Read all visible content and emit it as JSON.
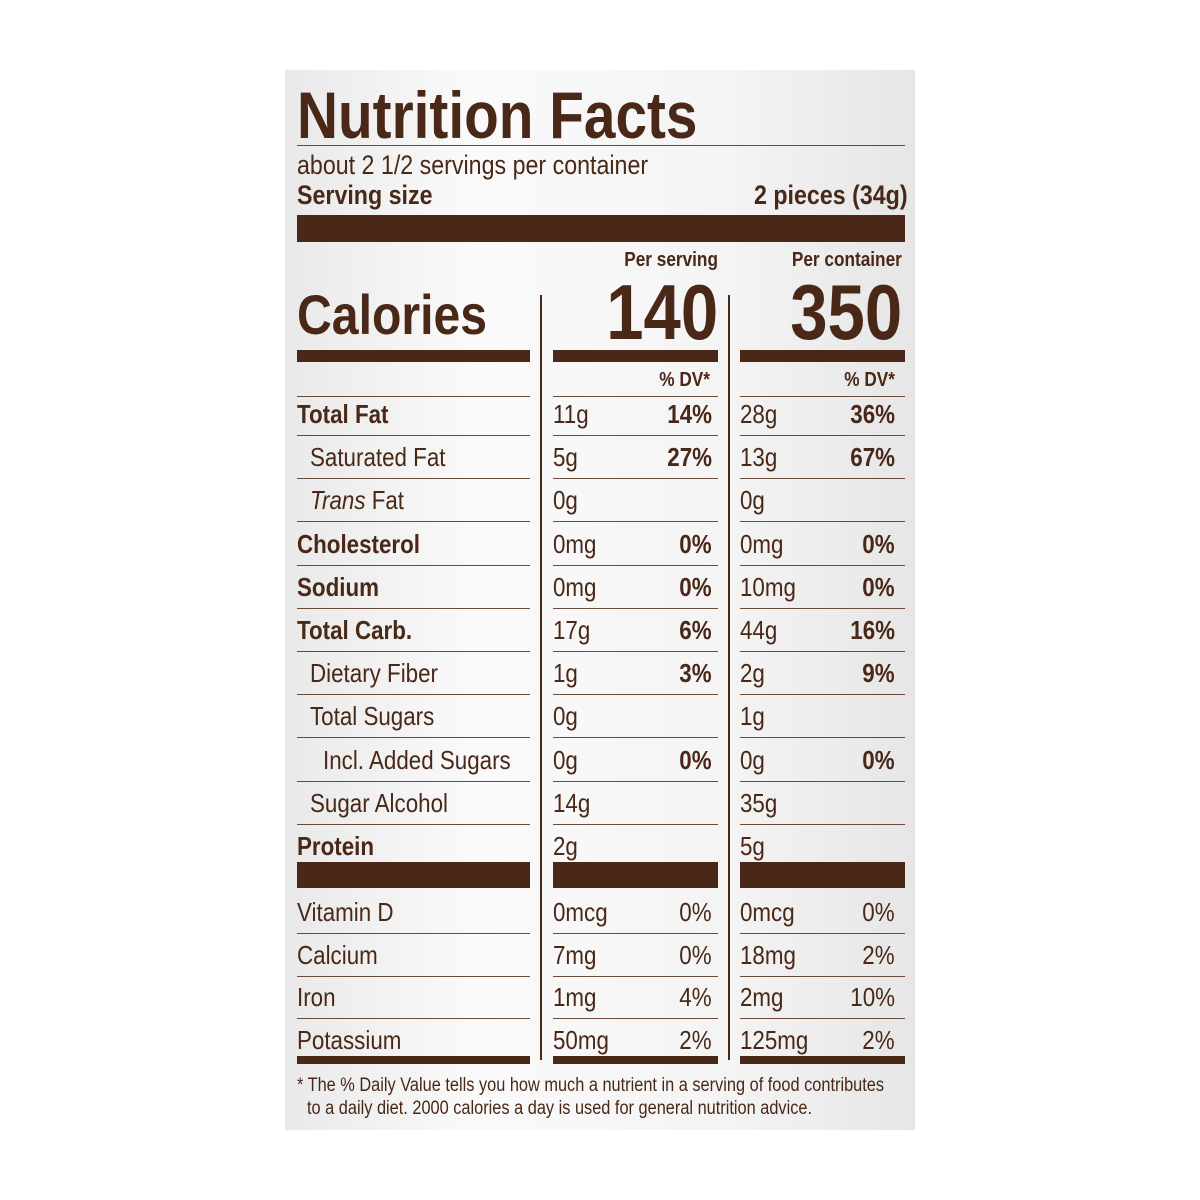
{
  "title": "Nutrition Facts",
  "servings": "about 2 1/2 servings per container",
  "serving_size_label": "Serving size",
  "serving_size": "2 pieces (34g)",
  "columns": [
    "Per serving",
    "Per container"
  ],
  "calories_label": "Calories",
  "calories": [
    140,
    350
  ],
  "dv_header": "% DV*",
  "nutrients": [
    {
      "name": "Total Fat",
      "level": 0,
      "values": [
        [
          "11g",
          "14%"
        ],
        [
          "28g",
          "36%"
        ]
      ]
    },
    {
      "name": "Saturated Fat",
      "level": 1,
      "values": [
        [
          "5g",
          "27%"
        ],
        [
          "13g",
          "67%"
        ]
      ]
    },
    {
      "name_italic": "Trans",
      "name": "Fat",
      "level": 1,
      "values": [
        [
          "0g"
        ],
        [
          "0g"
        ]
      ]
    },
    {
      "name": "Cholesterol",
      "level": 0,
      "values": [
        [
          "0mg",
          "0%"
        ],
        [
          "0mg",
          "0%"
        ]
      ]
    },
    {
      "name": "Sodium",
      "level": 0,
      "values": [
        [
          "0mg",
          "0%"
        ],
        [
          "10mg",
          "0%"
        ]
      ]
    },
    {
      "name": "Total Carb.",
      "level": 0,
      "values": [
        [
          "17g",
          "6%"
        ],
        [
          "44g",
          "16%"
        ]
      ]
    },
    {
      "name": "Dietary Fiber",
      "level": 1,
      "values": [
        [
          "1g",
          "3%"
        ],
        [
          "2g",
          "9%"
        ]
      ]
    },
    {
      "name": "Total Sugars",
      "level": 1,
      "values": [
        [
          "0g"
        ],
        [
          "1g"
        ]
      ]
    },
    {
      "name": "Incl. Added Sugars",
      "level": 2,
      "values": [
        [
          "0g",
          "0%"
        ],
        [
          "0g",
          "0%"
        ]
      ]
    },
    {
      "name": "Sugar Alcohol",
      "level": 1,
      "values": [
        [
          "14g"
        ],
        [
          "35g"
        ]
      ]
    },
    {
      "name": "Protein",
      "level": 0,
      "values": [
        [
          "2g"
        ],
        [
          "5g"
        ]
      ]
    }
  ],
  "vitamins": [
    {
      "name": "Vitamin D",
      "values": [
        [
          "0mcg",
          "0%"
        ],
        [
          "0mcg",
          "0%"
        ]
      ]
    },
    {
      "name": "Calcium",
      "values": [
        [
          "7mg",
          "0%"
        ],
        [
          "18mg",
          "2%"
        ]
      ]
    },
    {
      "name": "Iron",
      "values": [
        [
          "1mg",
          "4%"
        ],
        [
          "2mg",
          "10%"
        ]
      ]
    },
    {
      "name": "Potassium",
      "values": [
        [
          "50mg",
          "2%"
        ],
        [
          "125mg",
          "2%"
        ]
      ]
    }
  ],
  "footnote": [
    "* The % Daily Value tells you how much a nutrient in a serving of food contributes",
    "to a daily diet. 2000 calories a day is used for general nutrition advice."
  ]
}
